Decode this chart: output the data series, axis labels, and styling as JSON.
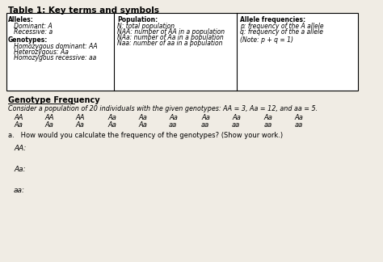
{
  "title": "Table 1: Key terms and symbols",
  "bg_color": "#f0ece4",
  "table": {
    "col1_header": "Alleles:",
    "col1_lines": [
      "   Dominant: A",
      "   Recessive: a"
    ],
    "col1_subheader": "Genotypes:",
    "col1_sublines": [
      "   Homozygous dominant: AA",
      "   Heterozygous: Aa",
      "   Homozygous recessive: aa"
    ],
    "col2_header": "Population:",
    "col2_lines": [
      "N: total population",
      "NAA: number of AA in a population",
      "NAa: number of Aa in a population",
      "Naa: number of aa in a population"
    ],
    "col3_header": "Allele frequencies:",
    "col3_lines": [
      "p: frequency of the A allele",
      "q: frequency of the a allele"
    ],
    "col3_note": "(Note: p + q = 1)"
  },
  "section_title": "Genotype Frequency",
  "intro_text": "Consider a population of 20 individuals with the given genotypes: AA = 3, Aa = 12, and aa = 5.",
  "row1": [
    "AA",
    "AA",
    "AA",
    "Aa",
    "Aa",
    "Aa",
    "Aa",
    "Aa",
    "Aa",
    "Aa"
  ],
  "row2": [
    "Aa",
    "Aa",
    "Aa",
    "Aa",
    "Aa",
    "aa",
    "aa",
    "aa",
    "aa",
    "aa"
  ],
  "question_a": "a.   How would you calculate the frequency of the genotypes? (Show your work.)",
  "label_AA": "AA:",
  "label_Aa": "Aa:",
  "label_aa": "aa:"
}
